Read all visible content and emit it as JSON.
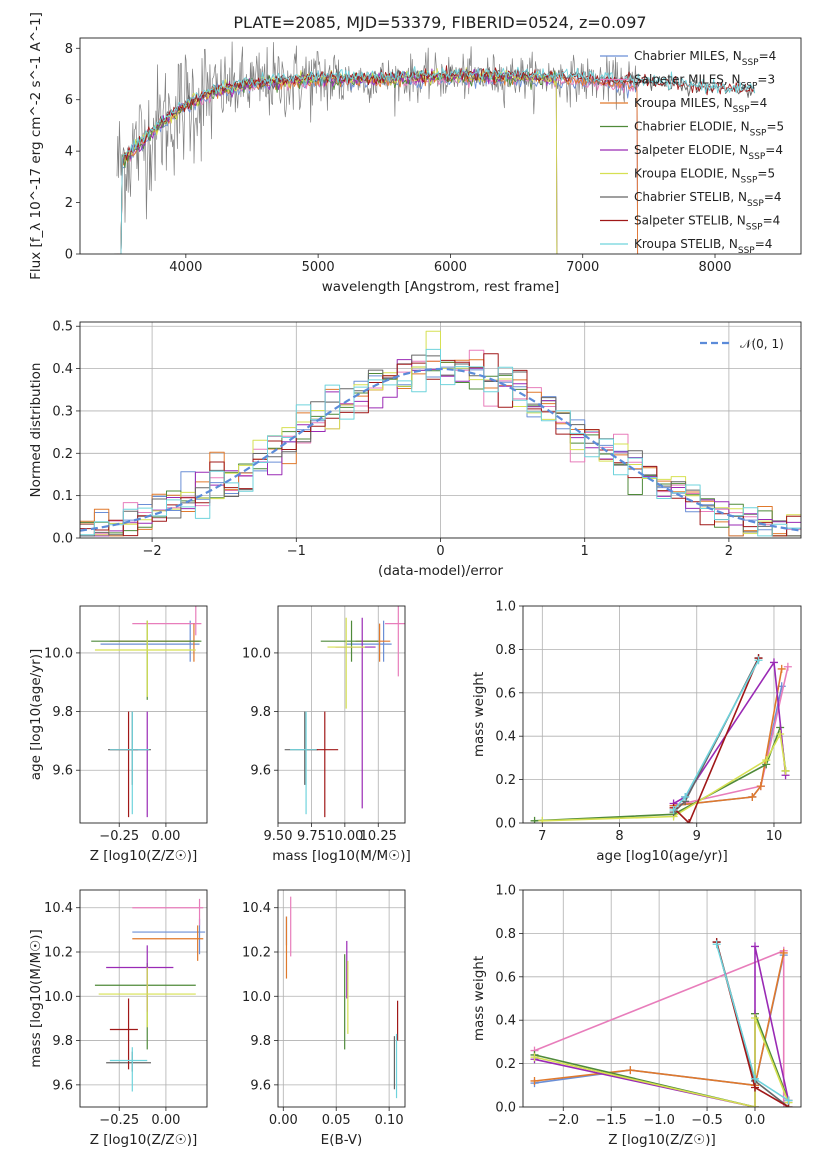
{
  "title": "PLATE=2085, MJD=53379, FIBERID=0524, z=0.097",
  "colors": {
    "chabrier_miles": "#6b8fd6",
    "salpeter_miles": "#e87dbb",
    "kroupa_miles": "#e0792c",
    "chabrier_elodie": "#4f8a3a",
    "salpeter_elodie": "#9a2ab5",
    "kroupa_elodie": "#d6e052",
    "chabrier_stelib": "#666666",
    "salpeter_stelib": "#a01818",
    "kroupa_stelib": "#6fd3dc",
    "normal_curve": "#5b8bd9"
  },
  "chart_data": [
    {
      "id": "spectrum",
      "type": "line",
      "xlabel": "wavelength [Angstrom, rest frame]",
      "ylabel": "Flux [f_λ 10^-17 erg cm^-2 s^-1 A^-1]",
      "xlim": [
        3200,
        8650
      ],
      "ylim": [
        0,
        8.4
      ],
      "xticks": [
        "4000",
        "5000",
        "6000",
        "7000",
        "8000"
      ],
      "yticks": [
        "0",
        "2",
        "4",
        "6",
        "8"
      ],
      "grid": false,
      "legend_position": "right",
      "legend": [
        "Chabrier MILES, N_SSP=4",
        "Salpeter MILES, N_SSP=3",
        "Kroupa MILES, N_SSP=4",
        "Chabrier ELODIE, N_SSP=5",
        "Salpeter ELODIE, N_SSP=4",
        "Kroupa ELODIE, N_SSP=5",
        "Chabrier STELIB, N_SSP=4",
        "Salpeter STELIB, N_SSP=4",
        "Kroupa STELIB, N_SSP=4"
      ],
      "observed_continuum": {
        "x": [
          3480,
          3600,
          3800,
          4000,
          4200,
          4500,
          5000,
          5500,
          6000,
          6500,
          7000,
          7500,
          8000,
          8300
        ],
        "y": [
          3.4,
          4.0,
          5.0,
          5.8,
          6.3,
          6.6,
          6.8,
          6.8,
          6.9,
          6.9,
          6.8,
          6.6,
          6.4,
          6.3
        ]
      }
    },
    {
      "id": "residual-histogram",
      "type": "bar",
      "xlabel": "(data-model)/error",
      "ylabel": "Normed distribution",
      "xlim": [
        -2.5,
        2.5
      ],
      "ylim": [
        0,
        0.51
      ],
      "xticks": [
        "−2",
        "−1",
        "0",
        "1",
        "2"
      ],
      "yticks": [
        "0.0",
        "0.1",
        "0.2",
        "0.3",
        "0.4",
        "0.5"
      ],
      "grid": true,
      "legend": [
        "𝒩(0, 1)"
      ],
      "legend_position": "top-right",
      "bin_width": 0.1,
      "reference_curve": "standard normal"
    },
    {
      "id": "age-vs-Z",
      "type": "scatter",
      "xlabel": "Z [log10(Z/Z☉)]",
      "ylabel": "age [log10(age/yr)]",
      "xlim": [
        -0.46,
        0.22
      ],
      "ylim": [
        9.42,
        10.16
      ],
      "xticks": [
        "−0.25",
        "0.00"
      ],
      "yticks": [
        "9.6",
        "9.8",
        "10.0"
      ],
      "grid": true,
      "points": [
        {
          "series": "chabrier_miles",
          "x": 0.13,
          "y": 10.03,
          "xerr": [
            0.48,
            0.05
          ],
          "yerr": [
            0.06,
            0.08
          ]
        },
        {
          "series": "salpeter_miles",
          "x": 0.16,
          "y": 10.1,
          "xerr": [
            0.34,
            0.03
          ],
          "yerr": [
            0.04,
            0.06
          ]
        },
        {
          "series": "kroupa_miles",
          "x": 0.15,
          "y": 10.04,
          "xerr": [
            0.45,
            0.03
          ],
          "yerr": [
            0.07,
            0.06
          ]
        },
        {
          "series": "chabrier_elodie",
          "x": -0.1,
          "y": 10.04,
          "xerr": [
            0.3,
            0.29
          ],
          "yerr": [
            0.2,
            0.07
          ]
        },
        {
          "series": "salpeter_elodie",
          "x": -0.1,
          "y": 9.67,
          "xerr": [
            0.08,
            0.01
          ],
          "yerr": [
            0.23,
            0.13
          ]
        },
        {
          "series": "kroupa_elodie",
          "x": -0.1,
          "y": 10.01,
          "xerr": [
            0.28,
            0.26
          ],
          "yerr": [
            0.16,
            0.1
          ]
        },
        {
          "series": "chabrier_stelib",
          "x": -0.18,
          "y": 9.67,
          "xerr": [
            0.13,
            0.1
          ],
          "yerr": [
            0.12,
            0.13
          ]
        },
        {
          "series": "salpeter_stelib",
          "x": -0.2,
          "y": 9.67,
          "xerr": [
            0.1,
            0.05
          ],
          "yerr": [
            0.23,
            0.13
          ]
        },
        {
          "series": "kroupa_stelib",
          "x": -0.18,
          "y": 9.67,
          "xerr": [
            0.12,
            0.09
          ],
          "yerr": [
            0.22,
            0.13
          ]
        }
      ]
    },
    {
      "id": "age-vs-mass",
      "type": "scatter",
      "xlabel": "mass [log10(M/M☉)]",
      "ylabel": "",
      "xlim": [
        9.5,
        10.45
      ],
      "ylim": [
        9.42,
        10.16
      ],
      "xticks": [
        "9.50",
        "9.75",
        "10.00",
        "10.25"
      ],
      "yticks": [
        "9.6",
        "9.8",
        "10.0"
      ],
      "grid": true,
      "points": [
        {
          "series": "chabrier_miles",
          "x": 10.29,
          "y": 10.03,
          "xerr": [
            0.28,
            0.06
          ],
          "yerr": [
            0.06,
            0.08
          ]
        },
        {
          "series": "salpeter_miles",
          "x": 10.4,
          "y": 10.1,
          "xerr": [
            0.1,
            0.05
          ],
          "yerr": [
            0.18,
            0.06
          ]
        },
        {
          "series": "kroupa_miles",
          "x": 10.26,
          "y": 10.04,
          "xerr": [
            0.18,
            0.08
          ],
          "yerr": [
            0.07,
            0.06
          ]
        },
        {
          "series": "chabrier_elodie",
          "x": 10.05,
          "y": 10.04,
          "xerr": [
            0.23,
            0.2
          ],
          "yerr": [
            0.07,
            0.07
          ]
        },
        {
          "series": "salpeter_elodie",
          "x": 10.13,
          "y": 10.02,
          "xerr": [
            0.2,
            0.1
          ],
          "yerr": [
            0.55,
            0.1
          ]
        },
        {
          "series": "kroupa_elodie",
          "x": 10.01,
          "y": 10.02,
          "xerr": [
            0.14,
            0.14
          ],
          "yerr": [
            0.21,
            0.1
          ]
        },
        {
          "series": "chabrier_stelib",
          "x": 9.7,
          "y": 9.67,
          "xerr": [
            0.15,
            0.1
          ],
          "yerr": [
            0.12,
            0.13
          ]
        },
        {
          "series": "salpeter_stelib",
          "x": 9.85,
          "y": 9.67,
          "xerr": [
            0.15,
            0.1
          ],
          "yerr": [
            0.23,
            0.13
          ]
        },
        {
          "series": "kroupa_stelib",
          "x": 9.71,
          "y": 9.67,
          "xerr": [
            0.12,
            0.08
          ],
          "yerr": [
            0.22,
            0.13
          ]
        }
      ]
    },
    {
      "id": "mass-weight-vs-age",
      "type": "line",
      "xlabel": "age  [log10(age/yr)]",
      "ylabel": "mass weight",
      "xlim": [
        6.75,
        10.35
      ],
      "ylim": [
        0,
        1.0
      ],
      "xticks": [
        "7",
        "8",
        "9",
        "10"
      ],
      "yticks": [
        "0.0",
        "0.2",
        "0.4",
        "0.6",
        "0.8",
        "1.0"
      ],
      "grid": true,
      "series": [
        {
          "name": "chabrier_miles",
          "x": [
            8.7,
            9.72,
            9.83,
            10.1
          ],
          "y": [
            0.08,
            0.12,
            0.17,
            0.63
          ]
        },
        {
          "name": "salpeter_miles",
          "x": [
            8.7,
            9.83,
            10.18
          ],
          "y": [
            0.08,
            0.17,
            0.72
          ]
        },
        {
          "name": "kroupa_miles",
          "x": [
            8.7,
            9.72,
            9.83,
            10.1
          ],
          "y": [
            0.08,
            0.12,
            0.17,
            0.71
          ]
        },
        {
          "name": "chabrier_elodie",
          "x": [
            6.9,
            8.7,
            9.9,
            10.08,
            10.15
          ],
          "y": [
            0.01,
            0.04,
            0.27,
            0.44,
            0.24
          ]
        },
        {
          "name": "salpeter_elodie",
          "x": [
            8.7,
            8.85,
            10.0,
            10.15
          ],
          "y": [
            0.09,
            0.12,
            0.74,
            0.22
          ]
        },
        {
          "name": "kroupa_elodie",
          "x": [
            7.0,
            8.7,
            9.9,
            10.08,
            10.15
          ],
          "y": [
            0.01,
            0.03,
            0.29,
            0.41,
            0.24
          ]
        },
        {
          "name": "chabrier_stelib",
          "x": [
            8.7,
            8.85,
            9.8
          ],
          "y": [
            0.05,
            0.1,
            0.76
          ]
        },
        {
          "name": "salpeter_stelib",
          "x": [
            8.7,
            8.9,
            9.8
          ],
          "y": [
            0.07,
            0.0,
            0.76
          ]
        },
        {
          "name": "kroupa_stelib",
          "x": [
            8.7,
            8.85,
            9.8
          ],
          "y": [
            0.06,
            0.12,
            0.75
          ]
        }
      ]
    },
    {
      "id": "mass-vs-Z",
      "type": "scatter",
      "xlabel": "Z [log10(Z/Z☉)]",
      "ylabel": "mass [log10(M/M☉)]",
      "xlim": [
        -0.46,
        0.22
      ],
      "ylim": [
        9.5,
        10.48
      ],
      "xticks": [
        "−0.25",
        "0.00"
      ],
      "yticks": [
        "9.6",
        "9.8",
        "10.0",
        "10.2",
        "10.4"
      ],
      "grid": true,
      "points": [
        {
          "series": "chabrier_miles",
          "x": 0.18,
          "y": 10.29,
          "xerr": [
            0.36,
            0.03
          ],
          "yerr": [
            0.1,
            0.06
          ]
        },
        {
          "series": "salpeter_miles",
          "x": 0.18,
          "y": 10.4,
          "xerr": [
            0.36,
            0.02
          ],
          "yerr": [
            0.08,
            0.04
          ]
        },
        {
          "series": "kroupa_miles",
          "x": 0.17,
          "y": 10.26,
          "xerr": [
            0.35,
            0.03
          ],
          "yerr": [
            0.1,
            0.06
          ]
        },
        {
          "series": "chabrier_elodie",
          "x": -0.1,
          "y": 10.05,
          "xerr": [
            0.28,
            0.26
          ],
          "yerr": [
            0.29,
            0.1
          ]
        },
        {
          "series": "salpeter_elodie",
          "x": -0.1,
          "y": 10.13,
          "xerr": [
            0.22,
            0.14
          ],
          "yerr": [
            0.2,
            0.1
          ]
        },
        {
          "series": "kroupa_elodie",
          "x": -0.1,
          "y": 10.01,
          "xerr": [
            0.26,
            0.26
          ],
          "yerr": [
            0.15,
            0.12
          ]
        },
        {
          "series": "chabrier_stelib",
          "x": -0.18,
          "y": 9.7,
          "xerr": [
            0.14,
            0.1
          ],
          "yerr": [
            0.04,
            0.05
          ]
        },
        {
          "series": "salpeter_stelib",
          "x": -0.2,
          "y": 9.85,
          "xerr": [
            0.1,
            0.05
          ],
          "yerr": [
            0.18,
            0.14
          ]
        },
        {
          "series": "kroupa_stelib",
          "x": -0.18,
          "y": 9.71,
          "xerr": [
            0.12,
            0.08
          ],
          "yerr": [
            0.14,
            0.06
          ]
        }
      ]
    },
    {
      "id": "mass-vs-ebv",
      "type": "scatter",
      "xlabel": "E(B-V)",
      "ylabel": "",
      "xlim": [
        -0.005,
        0.115
      ],
      "ylim": [
        9.5,
        10.48
      ],
      "xticks": [
        "0.00",
        "0.05",
        "0.10"
      ],
      "yticks": [
        "9.6",
        "9.8",
        "10.0",
        "10.2",
        "10.4"
      ],
      "grid": true,
      "points": [
        {
          "series": "chabrier_miles",
          "x": 0.003,
          "y": 10.29,
          "yerr": [
            0.06,
            0.07
          ]
        },
        {
          "series": "salpeter_miles",
          "x": 0.007,
          "y": 10.4,
          "yerr": [
            0.22,
            0.05
          ]
        },
        {
          "series": "kroupa_miles",
          "x": 0.003,
          "y": 10.26,
          "yerr": [
            0.18,
            0.1
          ]
        },
        {
          "series": "chabrier_elodie",
          "x": 0.058,
          "y": 10.05,
          "yerr": [
            0.29,
            0.14
          ]
        },
        {
          "series": "salpeter_elodie",
          "x": 0.06,
          "y": 10.13,
          "yerr": [
            0.14,
            0.12
          ]
        },
        {
          "series": "kroupa_elodie",
          "x": 0.061,
          "y": 10.01,
          "yerr": [
            0.18,
            0.15
          ]
        },
        {
          "series": "chabrier_stelib",
          "x": 0.105,
          "y": 9.7,
          "yerr": [
            0.12,
            0.12
          ]
        },
        {
          "series": "salpeter_stelib",
          "x": 0.108,
          "y": 9.85,
          "yerr": [
            0.05,
            0.13
          ]
        },
        {
          "series": "kroupa_stelib",
          "x": 0.107,
          "y": 9.71,
          "yerr": [
            0.17,
            0.12
          ]
        }
      ]
    },
    {
      "id": "mass-weight-vs-Z",
      "type": "line",
      "xlabel": "Z [log10(Z/Z☉)]",
      "ylabel": "mass weight",
      "xlim": [
        -2.42,
        0.48
      ],
      "ylim": [
        0,
        1.0
      ],
      "xticks": [
        "−2.0",
        "−1.5",
        "−1.0",
        "−0.5",
        "0.0"
      ],
      "yticks": [
        "0.0",
        "0.2",
        "0.4",
        "0.6",
        "0.8",
        "1.0"
      ],
      "grid": true,
      "series": [
        {
          "name": "chabrier_miles",
          "x": [
            -2.3,
            -1.3,
            0.0,
            0.3
          ],
          "y": [
            0.11,
            0.17,
            0.1,
            0.7
          ]
        },
        {
          "name": "salpeter_miles",
          "x": [
            -2.3,
            0.3,
            0.3
          ],
          "y": [
            0.26,
            0.72,
            0.02
          ]
        },
        {
          "name": "kroupa_miles",
          "x": [
            -2.3,
            -1.3,
            0.0,
            0.3
          ],
          "y": [
            0.12,
            0.17,
            0.1,
            0.71
          ]
        },
        {
          "name": "chabrier_elodie",
          "x": [
            -2.3,
            0.0,
            0.0,
            0.35
          ],
          "y": [
            0.24,
            0.0,
            0.43,
            0.03
          ]
        },
        {
          "name": "salpeter_elodie",
          "x": [
            -2.3,
            0.0,
            0.0,
            0.35
          ],
          "y": [
            0.22,
            0.0,
            0.74,
            0.03
          ]
        },
        {
          "name": "kroupa_elodie",
          "x": [
            -2.3,
            0.0,
            0.0,
            0.35
          ],
          "y": [
            0.23,
            0.0,
            0.41,
            0.02
          ]
        },
        {
          "name": "chabrier_stelib",
          "x": [
            -0.4,
            0.0,
            0.35
          ],
          "y": [
            0.76,
            0.12,
            0.0
          ]
        },
        {
          "name": "salpeter_stelib",
          "x": [
            -0.4,
            0.0,
            0.35
          ],
          "y": [
            0.76,
            0.09,
            0.0
          ]
        },
        {
          "name": "kroupa_stelib",
          "x": [
            -0.4,
            0.0,
            0.35
          ],
          "y": [
            0.75,
            0.13,
            0.03
          ]
        }
      ]
    }
  ]
}
